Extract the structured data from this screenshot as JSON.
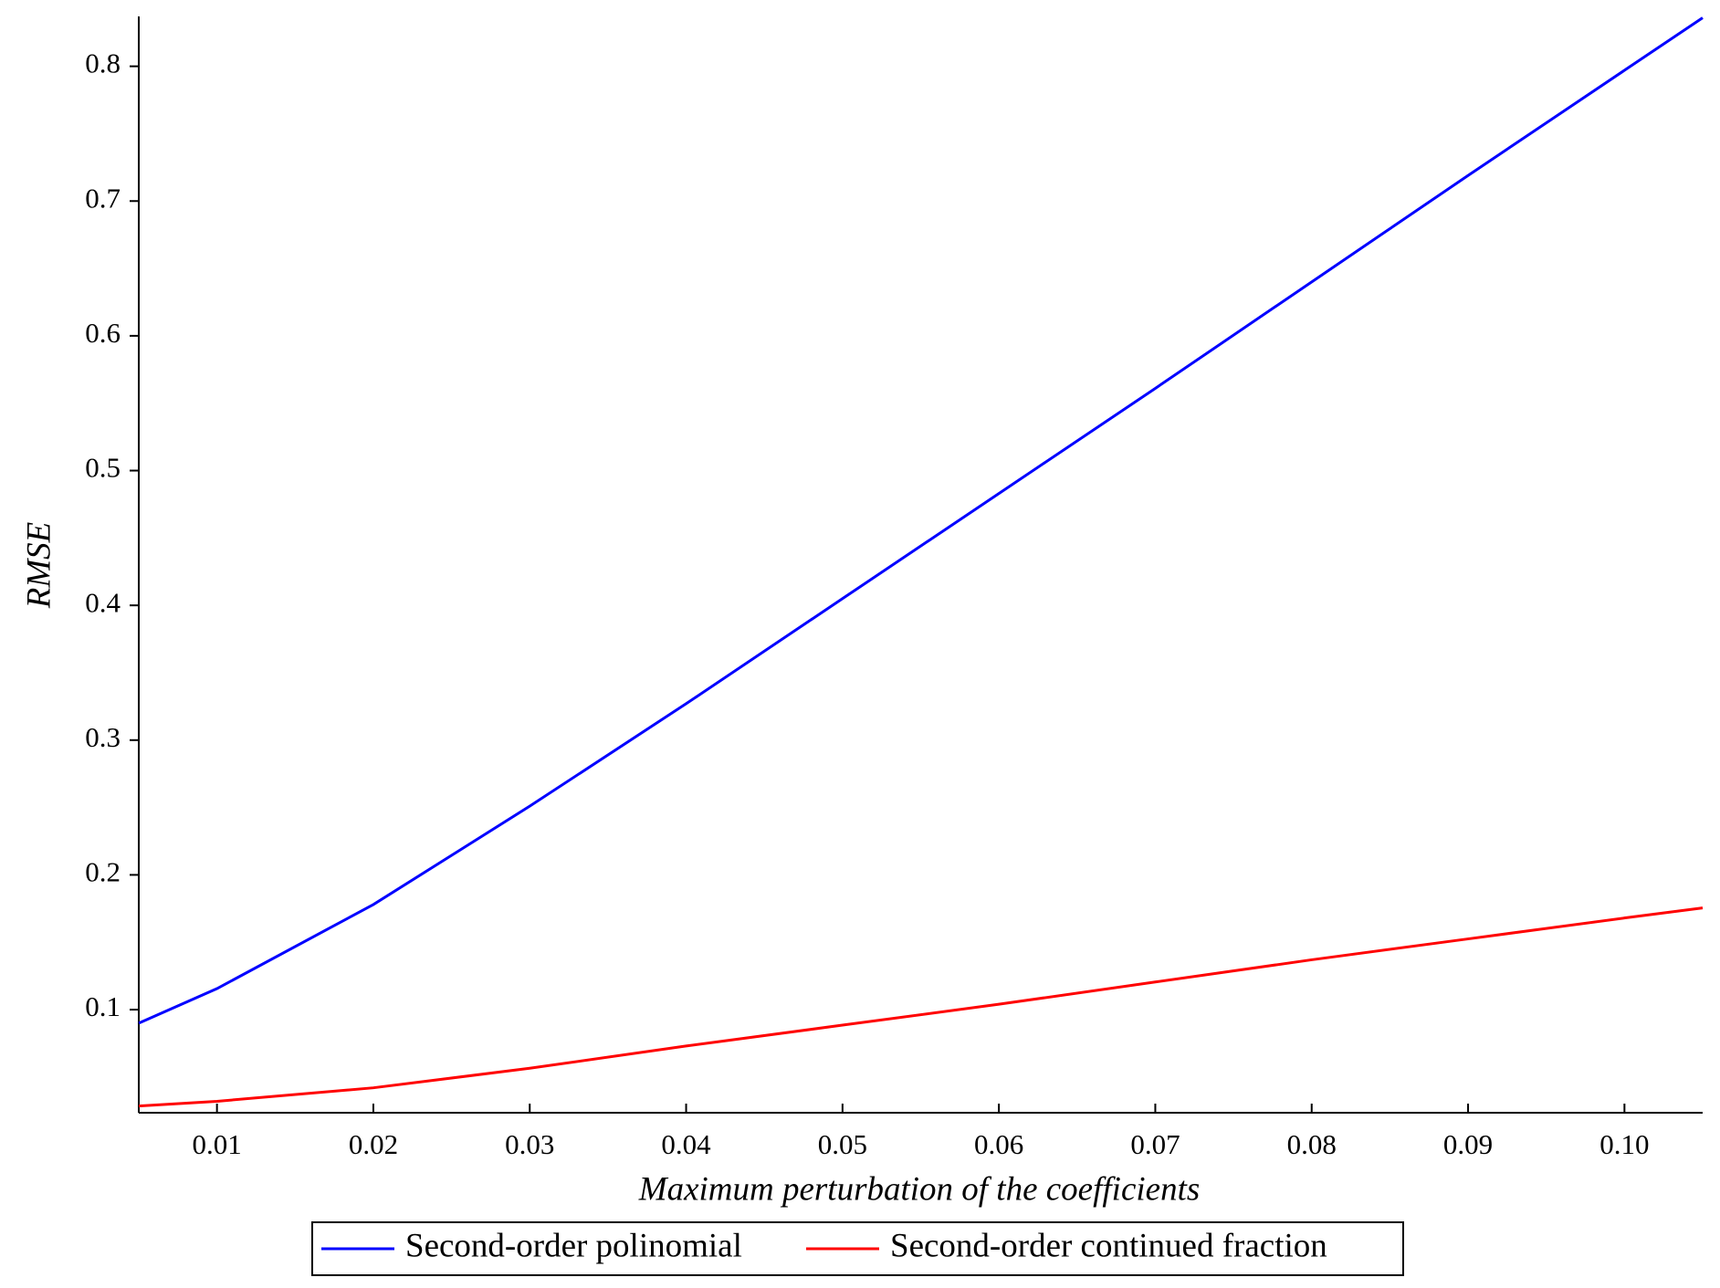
{
  "chart_data": {
    "type": "line",
    "x_label": "Maximum perturbation of the coefficients",
    "y_label": "RMSE",
    "x": [
      0.005,
      0.01,
      0.02,
      0.03,
      0.04,
      0.05,
      0.06,
      0.07,
      0.08,
      0.09,
      0.1,
      0.105
    ],
    "series": [
      {
        "name": "Second-order polinomial",
        "color": "#0000ff",
        "values": [
          0.09,
          0.1156,
          0.178,
          0.251,
          0.327,
          0.405,
          0.483,
          0.561,
          0.64,
          0.719,
          0.797,
          0.836
        ]
      },
      {
        "name": "Second-order continued fraction",
        "color": "#ff0000",
        "values": [
          0.0285,
          0.032,
          0.042,
          0.0565,
          0.073,
          0.0885,
          0.104,
          0.1205,
          0.137,
          0.1525,
          0.168,
          0.1755
        ]
      }
    ],
    "xlim": [
      0.005,
      0.105
    ],
    "ylim": [
      0.0235,
      0.837
    ],
    "xticks": [
      {
        "value": 0.01,
        "label": "0.01"
      },
      {
        "value": 0.02,
        "label": "0.02"
      },
      {
        "value": 0.03,
        "label": "0.03"
      },
      {
        "value": 0.04,
        "label": "0.04"
      },
      {
        "value": 0.05,
        "label": "0.05"
      },
      {
        "value": 0.06,
        "label": "0.06"
      },
      {
        "value": 0.07,
        "label": "0.07"
      },
      {
        "value": 0.08,
        "label": "0.08"
      },
      {
        "value": 0.09,
        "label": "0.09"
      },
      {
        "value": 0.1,
        "label": "0.10"
      }
    ],
    "yticks": [
      0.1,
      0.2,
      0.3,
      0.4,
      0.5,
      0.6,
      0.7,
      0.8
    ],
    "legend": "bottom"
  }
}
